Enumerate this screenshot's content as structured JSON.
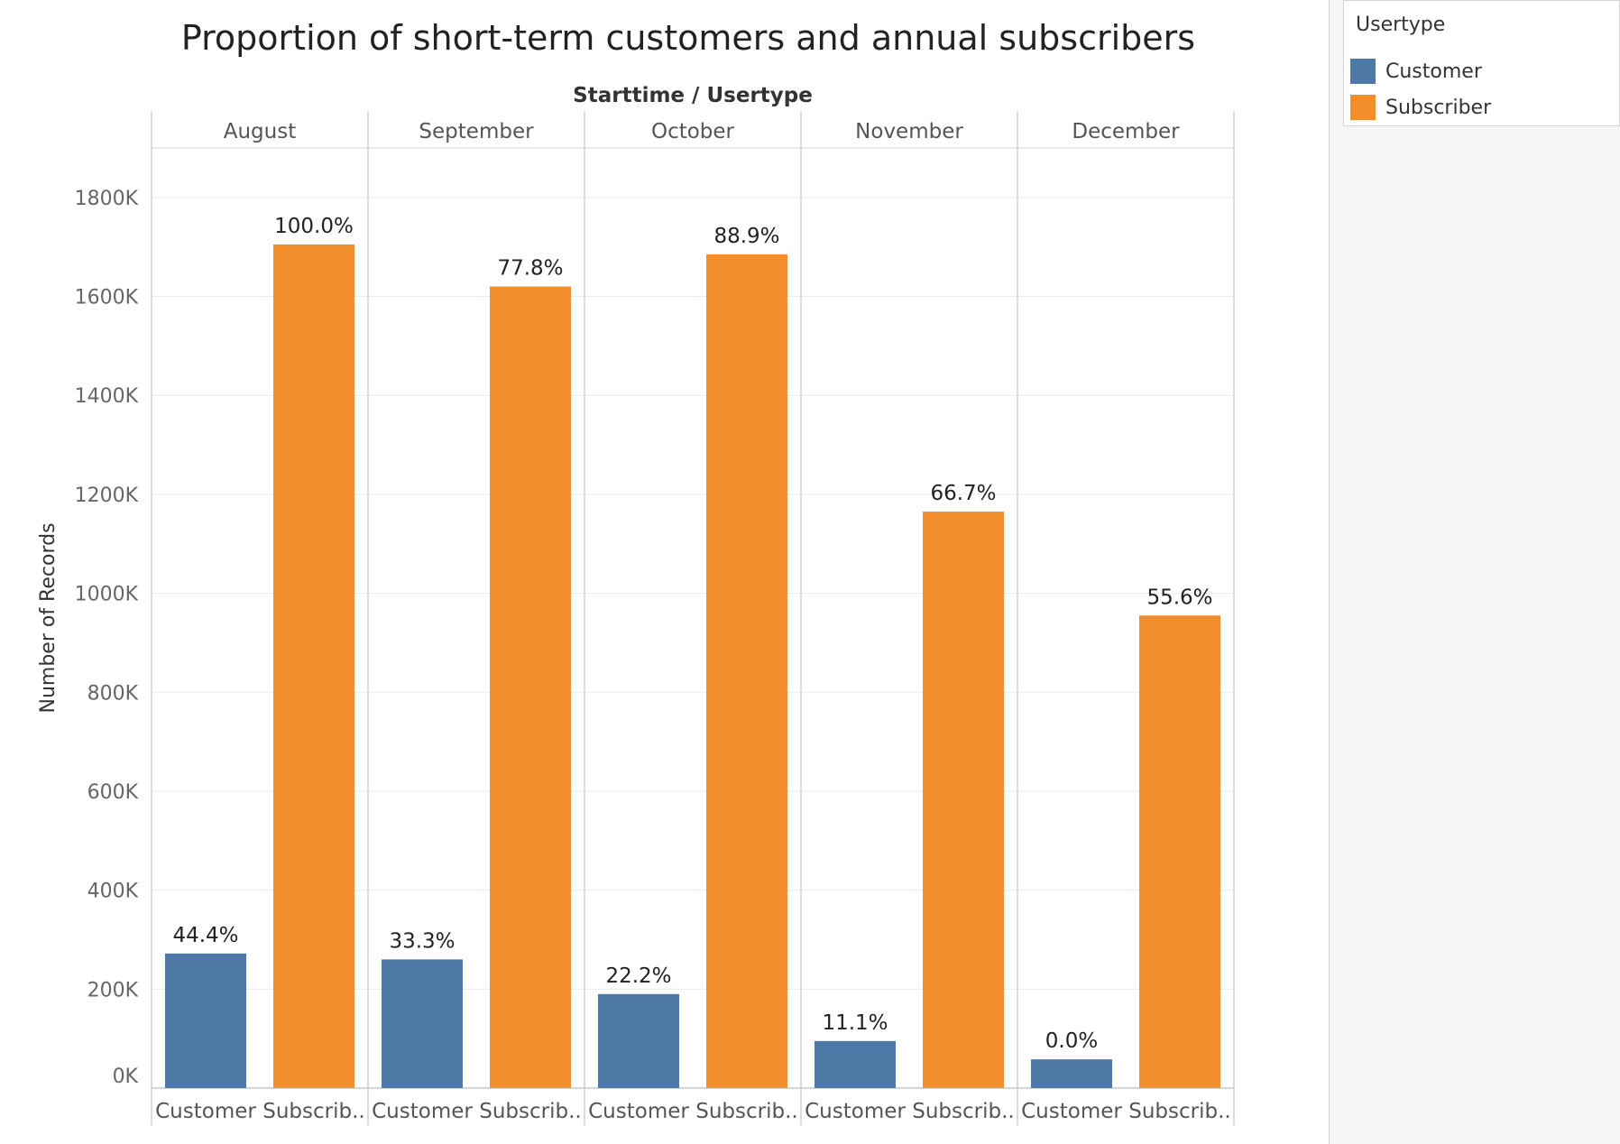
{
  "chart_data": {
    "type": "bar",
    "title": "Proportion of short-term customers and annual subscribers",
    "header": "Starttime / Usertype",
    "ylabel": "Number of Records",
    "ylim": [
      0,
      1900000
    ],
    "y_ticks": [
      {
        "value": 0,
        "label": "0K"
      },
      {
        "value": 200000,
        "label": "200K"
      },
      {
        "value": 400000,
        "label": "400K"
      },
      {
        "value": 600000,
        "label": "600K"
      },
      {
        "value": 800000,
        "label": "800K"
      },
      {
        "value": 1000000,
        "label": "1000K"
      },
      {
        "value": 1200000,
        "label": "1200K"
      },
      {
        "value": 1400000,
        "label": "1400K"
      },
      {
        "value": 1600000,
        "label": "1600K"
      },
      {
        "value": 1800000,
        "label": "1800K"
      }
    ],
    "grid": true,
    "legend": "top-right",
    "categories": [
      "August",
      "September",
      "October",
      "November",
      "December"
    ],
    "sub_categories": [
      "Customer",
      "Subscrib.."
    ],
    "series": [
      {
        "name": "Customer",
        "color": "#4e79a7",
        "values": [
          272000,
          260000,
          190000,
          95000,
          58000
        ],
        "labels": [
          "44.4%",
          "33.3%",
          "22.2%",
          "11.1%",
          "0.0%"
        ]
      },
      {
        "name": "Subscriber",
        "color": "#f28e2b",
        "values": [
          1705000,
          1620000,
          1685000,
          1165000,
          955000
        ],
        "labels": [
          "100.0%",
          "77.8%",
          "88.9%",
          "66.7%",
          "55.6%"
        ]
      }
    ]
  },
  "legend": {
    "title": "Usertype",
    "items": [
      {
        "label": "Customer",
        "color": "#4e79a7"
      },
      {
        "label": "Subscriber",
        "color": "#f28e2b"
      }
    ]
  }
}
